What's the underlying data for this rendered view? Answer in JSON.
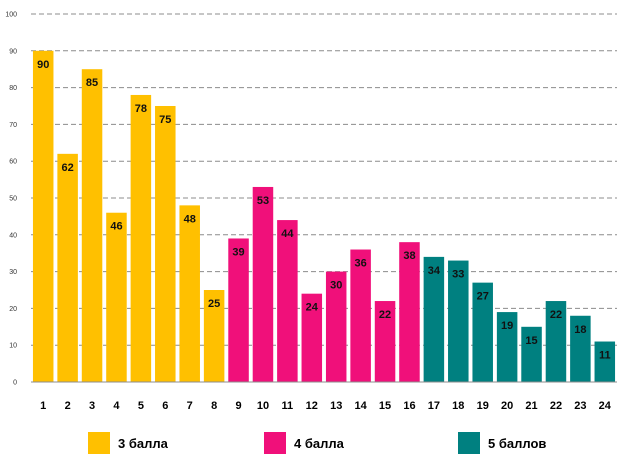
{
  "chart_data": {
    "type": "bar",
    "title": "",
    "xlabel": "",
    "ylabel": "",
    "ylim": [
      0,
      100
    ],
    "yticks": [
      0,
      10,
      20,
      30,
      40,
      50,
      60,
      70,
      80,
      90,
      100
    ],
    "grid": true,
    "legend_position": "bottom",
    "categories": [
      "1",
      "2",
      "3",
      "4",
      "5",
      "6",
      "7",
      "8",
      "9",
      "10",
      "11",
      "12",
      "13",
      "14",
      "15",
      "16",
      "17",
      "18",
      "19",
      "20",
      "21",
      "22",
      "23",
      "24"
    ],
    "values": [
      90,
      62,
      85,
      46,
      78,
      75,
      48,
      25,
      39,
      53,
      44,
      24,
      30,
      36,
      22,
      38,
      34,
      33,
      27,
      19,
      15,
      22,
      18,
      11
    ],
    "series": [
      {
        "name": "3 балла",
        "color": "#FFC000",
        "categories": [
          "1",
          "2",
          "3",
          "4",
          "5",
          "6",
          "7",
          "8"
        ]
      },
      {
        "name": "4 балла",
        "color": "#F0107A",
        "categories": [
          "9",
          "10",
          "11",
          "12",
          "13",
          "14",
          "15",
          "16"
        ]
      },
      {
        "name": "5 баллов",
        "color": "#008080",
        "categories": [
          "17",
          "18",
          "19",
          "20",
          "21",
          "22",
          "23",
          "24"
        ]
      }
    ]
  }
}
